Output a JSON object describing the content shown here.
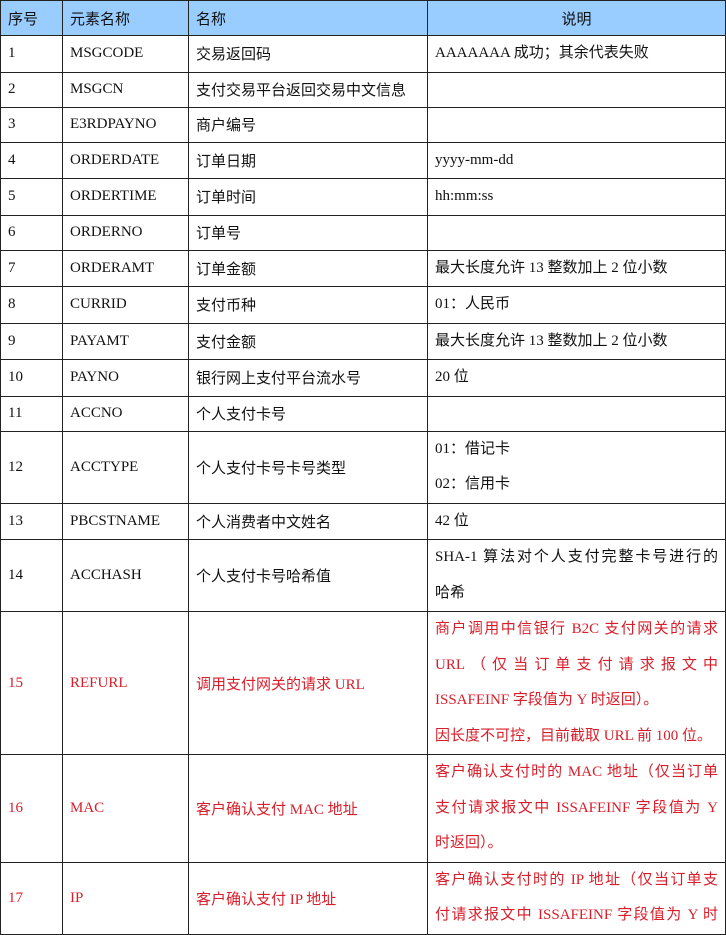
{
  "colors": {
    "header_bg": "#99ccff",
    "highlight_text": "#d81e2a"
  },
  "headers": [
    "序号",
    "元素名称",
    "名称",
    "说明"
  ],
  "rows": [
    {
      "no": "1",
      "code": "MSGCODE",
      "name": "交易返回码",
      "desc": [
        "AAAAAAA 成功；其余代表失败"
      ]
    },
    {
      "no": "2",
      "code": "MSGCN",
      "name": "支付交易平台返回交易中文信息",
      "desc": []
    },
    {
      "no": "3",
      "code": "E3RDPAYNO",
      "name": "商户编号",
      "desc": []
    },
    {
      "no": "4",
      "code": "ORDERDATE",
      "name": "订单日期",
      "desc": [
        "yyyy-mm-dd"
      ]
    },
    {
      "no": "5",
      "code": "ORDERTIME",
      "name": "订单时间",
      "desc": [
        "hh:mm:ss"
      ]
    },
    {
      "no": "6",
      "code": "ORDERNO",
      "name": "订单号",
      "desc": []
    },
    {
      "no": "7",
      "code": "ORDERAMT",
      "name": "订单金额",
      "desc": [
        "最大长度允许 13 整数加上 2 位小数"
      ]
    },
    {
      "no": "8",
      "code": "CURRID",
      "name": "支付币种",
      "desc": [
        "01：人民币"
      ]
    },
    {
      "no": "9",
      "code": "PAYAMT",
      "name": "支付金额",
      "desc": [
        "最大长度允许 13 整数加上 2 位小数"
      ]
    },
    {
      "no": "10",
      "code": "PAYNO",
      "name": "银行网上支付平台流水号",
      "desc": [
        "20 位"
      ]
    },
    {
      "no": "11",
      "code": "ACCNO",
      "name": "个人支付卡号",
      "desc": []
    },
    {
      "no": "12",
      "code": "ACCTYPE",
      "name": "个人支付卡号卡号类型",
      "desc": [
        "01：借记卡",
        "02：信用卡"
      ]
    },
    {
      "no": "13",
      "code": "PBCSTNAME",
      "name": "个人消费者中文姓名",
      "desc": [
        "42 位"
      ]
    },
    {
      "no": "14",
      "code": "ACCHASH",
      "name": "个人支付卡号哈希值",
      "desc": [
        "SHA-1 算法对个人支付完整卡号进行的",
        "哈希"
      ],
      "justify": [
        0
      ]
    },
    {
      "no": "15",
      "code": "REFURL",
      "name": "调用支付网关的请求 URL",
      "highlight": true,
      "desc": [
        "商户调用中信银行 B2C 支付网关的请求",
        "URL（仅当订单支付请求报文中",
        "ISSAFEINF 字段值为 Y 时返回）。",
        "因长度不可控，目前截取 URL 前 100 位。"
      ],
      "justify": [
        0,
        1
      ]
    },
    {
      "no": "16",
      "code": "MAC",
      "name": "客户确认支付 MAC 地址",
      "highlight": true,
      "desc": [
        "客户确认支付时的 MAC 地址（仅当订单",
        "支付请求报文中 ISSAFEINF 字段值为 Y",
        "时返回）。"
      ],
      "justify": [
        0,
        1
      ]
    },
    {
      "no": "17",
      "code": "IP",
      "name": "客户确认支付 IP 地址",
      "highlight": true,
      "desc": [
        "客户确认支付时的 IP 地址（仅当订单支",
        "付请求报文中 ISSAFEINF 字段值为 Y 时"
      ],
      "justify": [
        0,
        1
      ]
    }
  ]
}
